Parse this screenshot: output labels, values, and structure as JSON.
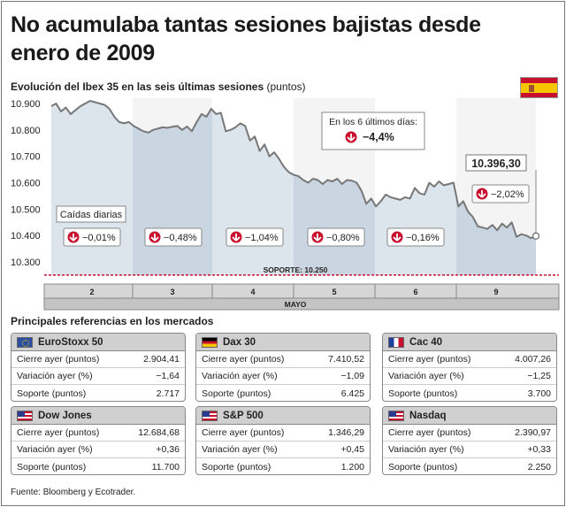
{
  "headline": "No acumulaba tantas sesiones bajistas desde enero de 2009",
  "subtitle": "Evolución del Ibex 35 en las seis últimas sesiones",
  "subtitle_unit": "(puntos)",
  "chart_data": {
    "type": "line",
    "title": "Evolución del Ibex 35 en las seis últimas sesiones",
    "ylabel": "(puntos)",
    "xlabel": "MAYO",
    "ylim": [
      10250,
      10920
    ],
    "yticks": [
      "10.900",
      "10.800",
      "10.700",
      "10.600",
      "10.500",
      "10.400",
      "10.300"
    ],
    "ytick_values": [
      10900,
      10800,
      10700,
      10600,
      10500,
      10400,
      10300
    ],
    "days": [
      "2",
      "3",
      "4",
      "5",
      "6",
      "9"
    ],
    "series": [
      {
        "values": [
          10890,
          10900,
          10870,
          10885,
          10860,
          10875,
          10890,
          10900,
          10910,
          10905,
          10900,
          10895,
          10880,
          10850,
          10830,
          10825,
          10830,
          10815,
          10805,
          10795,
          10790,
          10800,
          10805,
          10810,
          10808,
          10812,
          10815,
          10800,
          10813,
          10795,
          10830,
          10860,
          10850,
          10880,
          10860,
          10865,
          10795,
          10800,
          10810,
          10825,
          10815,
          10760,
          10775,
          10720,
          10745,
          10700,
          10715,
          10690,
          10660,
          10640,
          10630,
          10625,
          10610,
          10600,
          10615,
          10610,
          10595,
          10610,
          10605,
          10615,
          10595,
          10610,
          10608,
          10600,
          10570,
          10520,
          10540,
          10510,
          10530,
          10555,
          10545,
          10540,
          10535,
          10545,
          10540,
          10580,
          10560,
          10555,
          10600,
          10585,
          10605,
          10590,
          10595,
          10600,
          10510,
          10530,
          10490,
          10470,
          10435,
          10430,
          10425,
          10440,
          10420,
          10445,
          10430,
          10450,
          10395,
          10405,
          10400,
          10390,
          10398
        ]
      }
    ],
    "last_value_label": "10.396,30",
    "daily_changes": [
      "−0,01%",
      "−0,48%",
      "−1,04%",
      "−0,80%",
      "−0,16%",
      "−2,02%"
    ],
    "daily_label": "Caídas diarias",
    "total_label": "En los 6 últimos días:",
    "total_change": "−4,4%",
    "support_label": "SOPORTE: 10.250",
    "support_value": 10250
  },
  "section2_title": "Principales referencias en los mercados",
  "markets": [
    {
      "name": "EuroStoxx 50",
      "flag": "eu-flag-icon",
      "flag_class": "fl-eu",
      "rows": [
        {
          "label": "Cierre ayer (puntos)",
          "value": "2.904,41"
        },
        {
          "label": "Variación ayer (%)",
          "value": "−1,64"
        },
        {
          "label": "Soporte (puntos)",
          "value": "2.717"
        }
      ]
    },
    {
      "name": "Dax 30",
      "flag": "germany-flag-icon",
      "flag_class": "fl-de",
      "rows": [
        {
          "label": "Cierre ayer (puntos)",
          "value": "7.410,52"
        },
        {
          "label": "Variación ayer (%)",
          "value": "−1,09"
        },
        {
          "label": "Soporte (puntos)",
          "value": "6.425"
        }
      ]
    },
    {
      "name": "Cac 40",
      "flag": "france-flag-icon",
      "flag_class": "fl-fr",
      "rows": [
        {
          "label": "Cierre ayer (puntos)",
          "value": "4.007,26"
        },
        {
          "label": "Variación ayer (%)",
          "value": "−1,25"
        },
        {
          "label": "Soporte (puntos)",
          "value": "3.700"
        }
      ]
    },
    {
      "name": "Dow Jones",
      "flag": "usa-flag-icon",
      "flag_class": "fl-us",
      "rows": [
        {
          "label": "Cierre ayer (puntos)",
          "value": "12.684,68"
        },
        {
          "label": "Variación ayer (%)",
          "value": "+0,36"
        },
        {
          "label": "Soporte (puntos)",
          "value": "11.700"
        }
      ]
    },
    {
      "name": "S&P 500",
      "flag": "usa-flag-icon",
      "flag_class": "fl-us",
      "rows": [
        {
          "label": "Cierre ayer (puntos)",
          "value": "1.346,29"
        },
        {
          "label": "Variación ayer (%)",
          "value": "+0,45"
        },
        {
          "label": "Soporte (puntos)",
          "value": "1.200"
        }
      ]
    },
    {
      "name": "Nasdaq",
      "flag": "usa-flag-icon",
      "flag_class": "fl-us",
      "rows": [
        {
          "label": "Cierre ayer (puntos)",
          "value": "2.390,97"
        },
        {
          "label": "Variación ayer (%)",
          "value": "+0,33"
        },
        {
          "label": "Soporte (puntos)",
          "value": "2.250"
        }
      ]
    }
  ],
  "source": "Fuente: Bloomberg y Ecotrader."
}
